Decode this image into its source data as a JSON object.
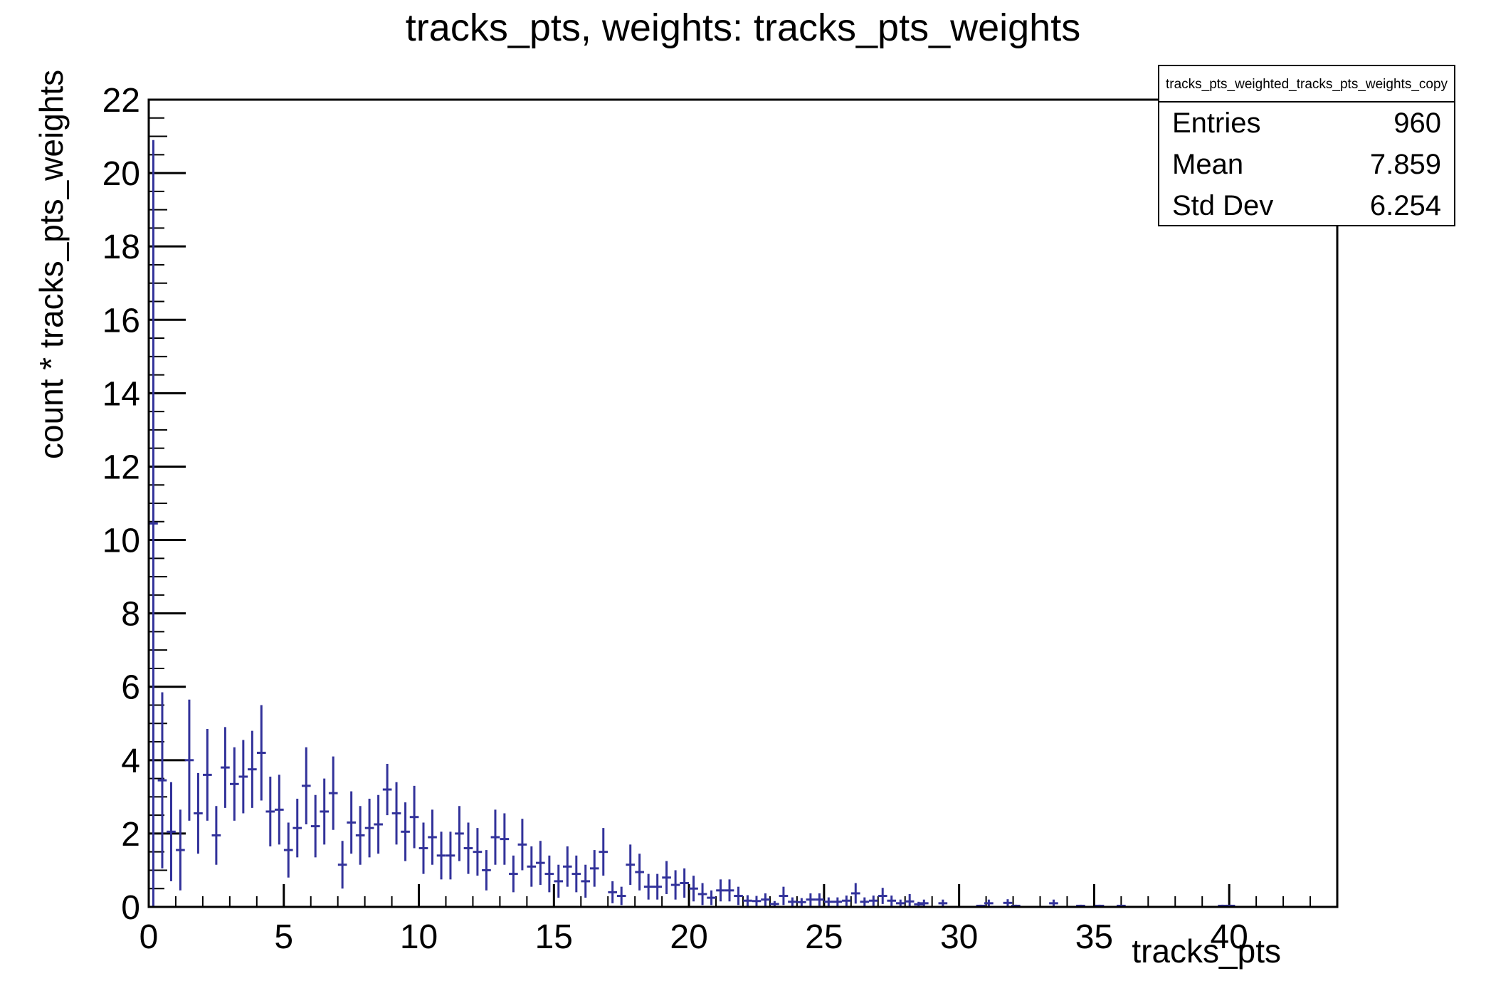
{
  "title": "tracks_pts, weights: tracks_pts_weights",
  "stats": {
    "header": "tracks_pts_weighted_tracks_pts_weights_copy",
    "rows": [
      {
        "label": "Entries",
        "value": "960"
      },
      {
        "label": "Mean",
        "value": "7.859"
      },
      {
        "label": "Std Dev",
        "value": "6.254"
      }
    ]
  },
  "colors": {
    "marker": "#32329a",
    "frame": "#000000",
    "background": "#ffffff"
  },
  "chart_data": {
    "type": "scatter",
    "subtype": "histogram-errorbars",
    "title": "tracks_pts, weights: tracks_pts_weights",
    "xlabel": "tracks_pts",
    "ylabel": "count * tracks_pts_weights",
    "xlim": [
      0,
      44
    ],
    "ylim": [
      0,
      22
    ],
    "bin_width": 0.3333,
    "grid": false,
    "legend": false,
    "xticks_major": [
      0,
      5,
      10,
      15,
      20,
      25,
      30,
      35,
      40
    ],
    "xticks_minor_step": 1,
    "yticks_major": [
      0,
      2,
      4,
      6,
      8,
      10,
      12,
      14,
      16,
      18,
      20,
      22
    ],
    "yticks_minor_step": 0.5,
    "points": [
      [
        0.17,
        10.45,
        10.45
      ],
      [
        0.5,
        3.45,
        2.4
      ],
      [
        0.83,
        2.05,
        1.35
      ],
      [
        1.17,
        1.55,
        1.1
      ],
      [
        1.5,
        4.0,
        1.65
      ],
      [
        1.83,
        2.55,
        1.1
      ],
      [
        2.17,
        3.6,
        1.25
      ],
      [
        2.5,
        1.95,
        0.8
      ],
      [
        2.83,
        3.8,
        1.1
      ],
      [
        3.17,
        3.35,
        1.0
      ],
      [
        3.5,
        3.55,
        1.0
      ],
      [
        3.83,
        3.75,
        1.05
      ],
      [
        4.17,
        4.2,
        1.3
      ],
      [
        4.5,
        2.6,
        0.95
      ],
      [
        4.83,
        2.65,
        0.95
      ],
      [
        5.17,
        1.55,
        0.75
      ],
      [
        5.5,
        2.15,
        0.8
      ],
      [
        5.83,
        3.3,
        1.05
      ],
      [
        6.17,
        2.2,
        0.85
      ],
      [
        6.5,
        2.6,
        0.9
      ],
      [
        6.83,
        3.1,
        1.0
      ],
      [
        7.17,
        1.15,
        0.65
      ],
      [
        7.5,
        2.3,
        0.85
      ],
      [
        7.83,
        1.95,
        0.8
      ],
      [
        8.17,
        2.15,
        0.8
      ],
      [
        8.5,
        2.25,
        0.8
      ],
      [
        8.83,
        3.2,
        0.7
      ],
      [
        9.17,
        2.55,
        0.85
      ],
      [
        9.5,
        2.05,
        0.8
      ],
      [
        9.83,
        2.45,
        0.85
      ],
      [
        10.17,
        1.6,
        0.7
      ],
      [
        10.5,
        1.9,
        0.75
      ],
      [
        10.83,
        1.4,
        0.65
      ],
      [
        11.17,
        1.4,
        0.65
      ],
      [
        11.5,
        2.0,
        0.75
      ],
      [
        11.83,
        1.6,
        0.7
      ],
      [
        12.17,
        1.5,
        0.65
      ],
      [
        12.5,
        1.0,
        0.55
      ],
      [
        12.83,
        1.9,
        0.75
      ],
      [
        13.17,
        1.85,
        0.7
      ],
      [
        13.5,
        0.9,
        0.5
      ],
      [
        13.83,
        1.7,
        0.7
      ],
      [
        14.17,
        1.1,
        0.55
      ],
      [
        14.5,
        1.2,
        0.6
      ],
      [
        14.83,
        0.9,
        0.5
      ],
      [
        15.17,
        0.7,
        0.45
      ],
      [
        15.5,
        1.1,
        0.55
      ],
      [
        15.83,
        0.9,
        0.5
      ],
      [
        16.17,
        0.7,
        0.45
      ],
      [
        16.5,
        1.05,
        0.5
      ],
      [
        16.83,
        1.5,
        0.65
      ],
      [
        17.17,
        0.4,
        0.3
      ],
      [
        17.5,
        0.3,
        0.25
      ],
      [
        17.83,
        1.15,
        0.55
      ],
      [
        18.17,
        0.95,
        0.5
      ],
      [
        18.5,
        0.55,
        0.35
      ],
      [
        18.83,
        0.55,
        0.35
      ],
      [
        19.17,
        0.8,
        0.45
      ],
      [
        19.5,
        0.6,
        0.4
      ],
      [
        19.83,
        0.65,
        0.4
      ],
      [
        20.17,
        0.5,
        0.35
      ],
      [
        20.5,
        0.35,
        0.3
      ],
      [
        20.83,
        0.25,
        0.2
      ],
      [
        21.17,
        0.45,
        0.3
      ],
      [
        21.5,
        0.45,
        0.3
      ],
      [
        21.83,
        0.3,
        0.25
      ],
      [
        22.17,
        0.17,
        0.15
      ],
      [
        22.5,
        0.16,
        0.14
      ],
      [
        22.83,
        0.2,
        0.17
      ],
      [
        23.17,
        0.08,
        0.08
      ],
      [
        23.5,
        0.3,
        0.25
      ],
      [
        23.83,
        0.14,
        0.12
      ],
      [
        24.17,
        0.13,
        0.11
      ],
      [
        24.5,
        0.2,
        0.17
      ],
      [
        24.83,
        0.2,
        0.17
      ],
      [
        25.17,
        0.14,
        0.12
      ],
      [
        25.5,
        0.14,
        0.12
      ],
      [
        25.83,
        0.17,
        0.14
      ],
      [
        26.17,
        0.37,
        0.28
      ],
      [
        26.5,
        0.14,
        0.12
      ],
      [
        26.83,
        0.17,
        0.14
      ],
      [
        27.17,
        0.3,
        0.22
      ],
      [
        27.5,
        0.17,
        0.14
      ],
      [
        27.83,
        0.1,
        0.1
      ],
      [
        28.17,
        0.15,
        0.2
      ],
      [
        28.5,
        0.07,
        0.07
      ],
      [
        28.7,
        0.1,
        0.1
      ],
      [
        29.4,
        0.1,
        0.1
      ],
      [
        30.8,
        0.03,
        0.03
      ],
      [
        31.1,
        0.1,
        0.1
      ],
      [
        31.8,
        0.11,
        0.1
      ],
      [
        32.1,
        0.03,
        0.03
      ],
      [
        33.5,
        0.1,
        0.1
      ],
      [
        34.5,
        0.03,
        0.03
      ],
      [
        35.2,
        0.03,
        0.03
      ],
      [
        36.0,
        0.03,
        0.03
      ],
      [
        39.75,
        0.03,
        0.03
      ],
      [
        40.05,
        0.03,
        0.03
      ]
    ]
  }
}
